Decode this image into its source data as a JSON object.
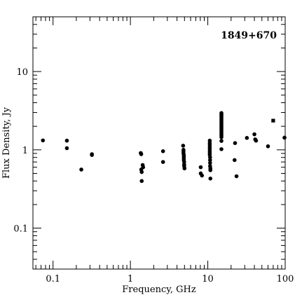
{
  "chart_data": {
    "type": "scatter",
    "title": "1849+670",
    "xlabel": "Frequency, GHz",
    "ylabel": "Flux Density, Jy",
    "xscale": "log",
    "yscale": "log",
    "xlim": [
      0.055,
      100
    ],
    "ylim": [
      0.03,
      50
    ],
    "grid": false,
    "x_ticks": [
      {
        "value": 0.1,
        "label": "0.1"
      },
      {
        "value": 1,
        "label": "1"
      },
      {
        "value": 10,
        "label": "10"
      },
      {
        "value": 100,
        "label": "100"
      }
    ],
    "y_ticks": [
      {
        "value": 0.1,
        "label": "0.1"
      },
      {
        "value": 1,
        "label": "1"
      },
      {
        "value": 10,
        "label": "10"
      }
    ],
    "series": [
      {
        "marker": "circle",
        "points": [
          [
            0.074,
            1.32
          ],
          [
            0.151,
            1.31
          ],
          [
            0.151,
            1.05
          ],
          [
            0.232,
            0.56
          ],
          [
            0.318,
            0.86
          ],
          [
            0.318,
            0.88
          ],
          [
            1.36,
            0.91
          ],
          [
            1.38,
            0.88
          ],
          [
            1.38,
            0.56
          ],
          [
            1.4,
            0.52
          ],
          [
            1.4,
            0.4
          ],
          [
            1.44,
            0.64
          ],
          [
            1.46,
            0.6
          ],
          [
            2.64,
            0.96
          ],
          [
            2.64,
            0.7
          ],
          [
            4.8,
            1.13
          ],
          [
            4.85,
            1.0
          ],
          [
            4.85,
            0.95
          ],
          [
            4.85,
            0.9
          ],
          [
            4.9,
            0.86
          ],
          [
            4.9,
            0.82
          ],
          [
            4.9,
            0.78
          ],
          [
            4.9,
            0.74
          ],
          [
            4.95,
            0.7
          ],
          [
            4.95,
            0.65
          ],
          [
            4.95,
            0.62
          ],
          [
            5.0,
            0.58
          ],
          [
            8.1,
            0.6
          ],
          [
            8.1,
            0.5
          ],
          [
            8.4,
            0.47
          ],
          [
            10.6,
            1.31
          ],
          [
            10.6,
            1.22
          ],
          [
            10.6,
            1.15
          ],
          [
            10.6,
            1.08
          ],
          [
            10.6,
            1.02
          ],
          [
            10.6,
            0.96
          ],
          [
            10.6,
            0.91
          ],
          [
            10.6,
            0.86
          ],
          [
            10.7,
            0.8
          ],
          [
            10.7,
            0.74
          ],
          [
            10.7,
            0.68
          ],
          [
            10.7,
            0.62
          ],
          [
            10.8,
            0.58
          ],
          [
            10.8,
            0.55
          ],
          [
            10.8,
            0.43
          ],
          [
            15.0,
            2.95
          ],
          [
            15.0,
            2.85
          ],
          [
            15.0,
            2.75
          ],
          [
            15.0,
            2.65
          ],
          [
            15.0,
            2.55
          ],
          [
            15.0,
            2.45
          ],
          [
            15.0,
            2.35
          ],
          [
            15.0,
            2.25
          ],
          [
            15.0,
            2.15
          ],
          [
            15.0,
            2.06
          ],
          [
            15.0,
            1.98
          ],
          [
            15.0,
            1.9
          ],
          [
            15.0,
            1.82
          ],
          [
            15.0,
            1.74
          ],
          [
            15.0,
            1.66
          ],
          [
            15.0,
            1.59
          ],
          [
            15.0,
            1.52
          ],
          [
            15.0,
            1.45
          ],
          [
            15.0,
            1.3
          ],
          [
            15.0,
            1.02
          ],
          [
            22.2,
            0.74
          ],
          [
            22.5,
            1.22
          ],
          [
            23.5,
            0.46
          ],
          [
            32.0,
            1.42
          ],
          [
            40.0,
            1.58
          ],
          [
            41.0,
            1.36
          ],
          [
            42.0,
            1.31
          ],
          [
            60.0,
            1.11
          ],
          [
            98.0,
            1.43
          ]
        ]
      },
      {
        "marker": "square",
        "points": [
          [
            70.0,
            2.36
          ]
        ]
      }
    ]
  }
}
